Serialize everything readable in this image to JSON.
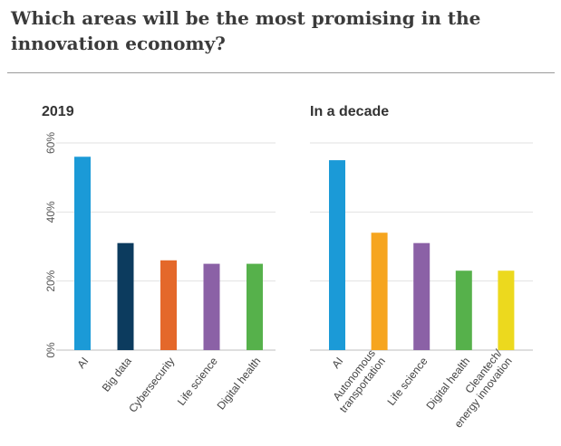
{
  "title": "Which areas will be the most promising in the innovation economy?",
  "chart_data": [
    {
      "type": "bar",
      "title": "2019",
      "ylim": [
        0,
        60
      ],
      "yticks": [
        "0%",
        "20%",
        "40%",
        "60%"
      ],
      "grid": true,
      "categories": [
        "AI",
        "Big data",
        "Cybersecurity",
        "Life science",
        "Digital health"
      ],
      "values": [
        56,
        31,
        26,
        25,
        25
      ],
      "colors": [
        "#1b9ad7",
        "#0c3b5e",
        "#e4682a",
        "#8b61a6",
        "#56b14b"
      ]
    },
    {
      "type": "bar",
      "title": "In a decade",
      "ylim": [
        0,
        60
      ],
      "yticks": [],
      "grid": true,
      "categories": [
        "AI",
        "Autonomous\ntransportation",
        "Life science",
        "Digital health",
        "Cleantech/\nenergy innovation"
      ],
      "values": [
        55,
        34,
        31,
        23,
        23
      ],
      "colors": [
        "#1b9ad7",
        "#f6a51f",
        "#8b61a6",
        "#56b14b",
        "#ecd91e"
      ]
    }
  ]
}
